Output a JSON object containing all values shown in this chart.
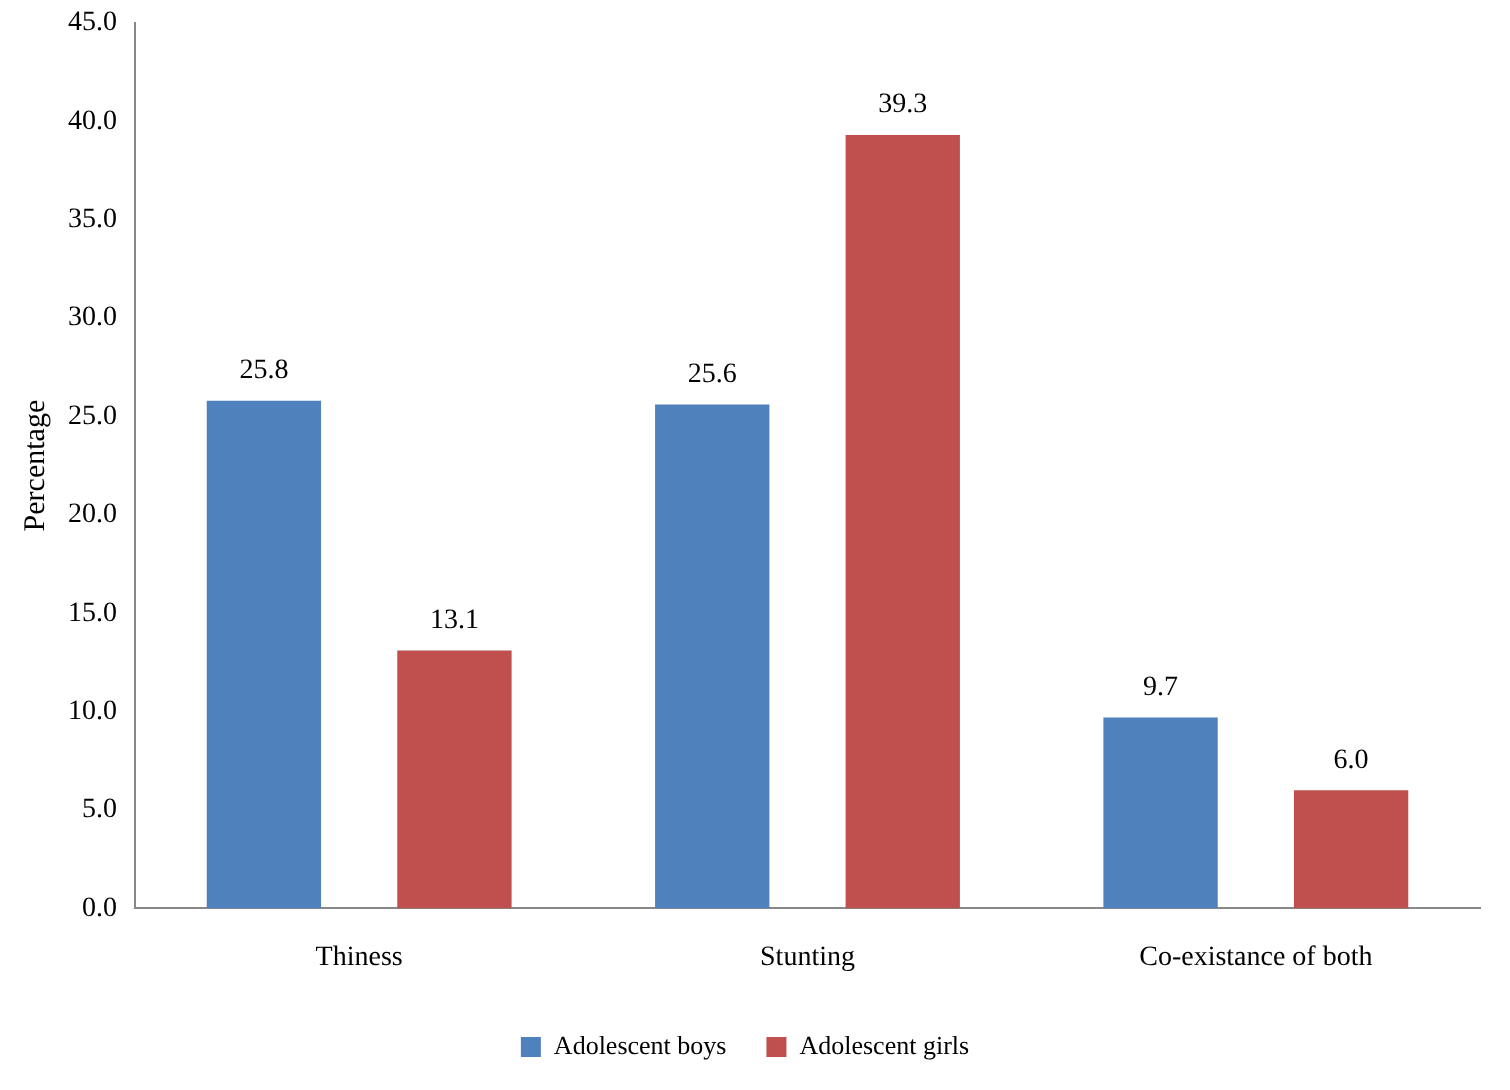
{
  "chart_data": {
    "type": "bar",
    "ylabel": "Percentage",
    "categories": [
      "Thiness",
      "Stunting",
      "Co-existance of both"
    ],
    "series": [
      {
        "name": "Adolescent boys",
        "color": "#4f81bd",
        "values": [
          25.8,
          25.6,
          9.7
        ],
        "value_labels": [
          "25.8",
          "25.6",
          "9.7"
        ]
      },
      {
        "name": "Adolescent girls",
        "color": "#c0504d",
        "values": [
          13.1,
          39.3,
          6.0
        ],
        "value_labels": [
          "13.1",
          "39.3",
          "6.0"
        ]
      }
    ],
    "ylim": [
      0,
      45
    ],
    "yticks": [
      {
        "value": 0,
        "label": "0.0"
      },
      {
        "value": 5,
        "label": "5.0"
      },
      {
        "value": 10,
        "label": "10.0"
      },
      {
        "value": 15,
        "label": "15.0"
      },
      {
        "value": 20,
        "label": "20.0"
      },
      {
        "value": 25,
        "label": "25.0"
      },
      {
        "value": 30,
        "label": "30.0"
      },
      {
        "value": 35,
        "label": "35.0"
      },
      {
        "value": 40,
        "label": "40.0"
      },
      {
        "value": 45,
        "label": "45.0"
      }
    ],
    "grid": false,
    "legend": "bottom"
  }
}
